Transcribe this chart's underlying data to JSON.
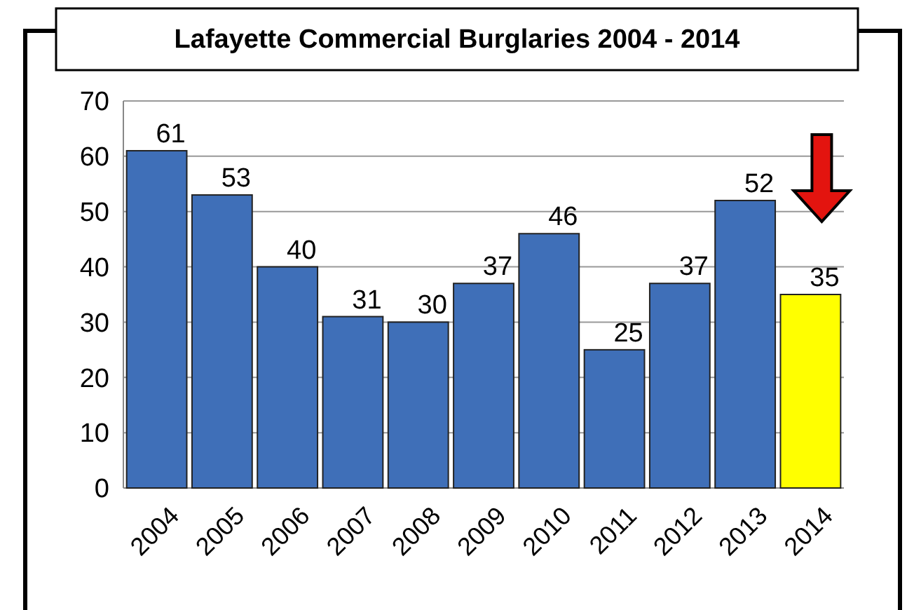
{
  "chart_data": {
    "type": "bar",
    "title": "Lafayette Commercial Burglaries 2004 - 2014",
    "categories": [
      "2004",
      "2005",
      "2006",
      "2007",
      "2008",
      "2009",
      "2010",
      "2011",
      "2012",
      "2013",
      "2014"
    ],
    "values": [
      61,
      53,
      40,
      31,
      30,
      37,
      46,
      25,
      37,
      52,
      35
    ],
    "colors": [
      "#3f6fb8",
      "#3f6fb8",
      "#3f6fb8",
      "#3f6fb8",
      "#3f6fb8",
      "#3f6fb8",
      "#3f6fb8",
      "#3f6fb8",
      "#3f6fb8",
      "#3f6fb8",
      "#ffff00"
    ],
    "ylim": [
      0,
      70
    ],
    "yticks": [
      0,
      10,
      20,
      30,
      40,
      50,
      60,
      70
    ],
    "grid": "y",
    "data_labels": true
  }
}
